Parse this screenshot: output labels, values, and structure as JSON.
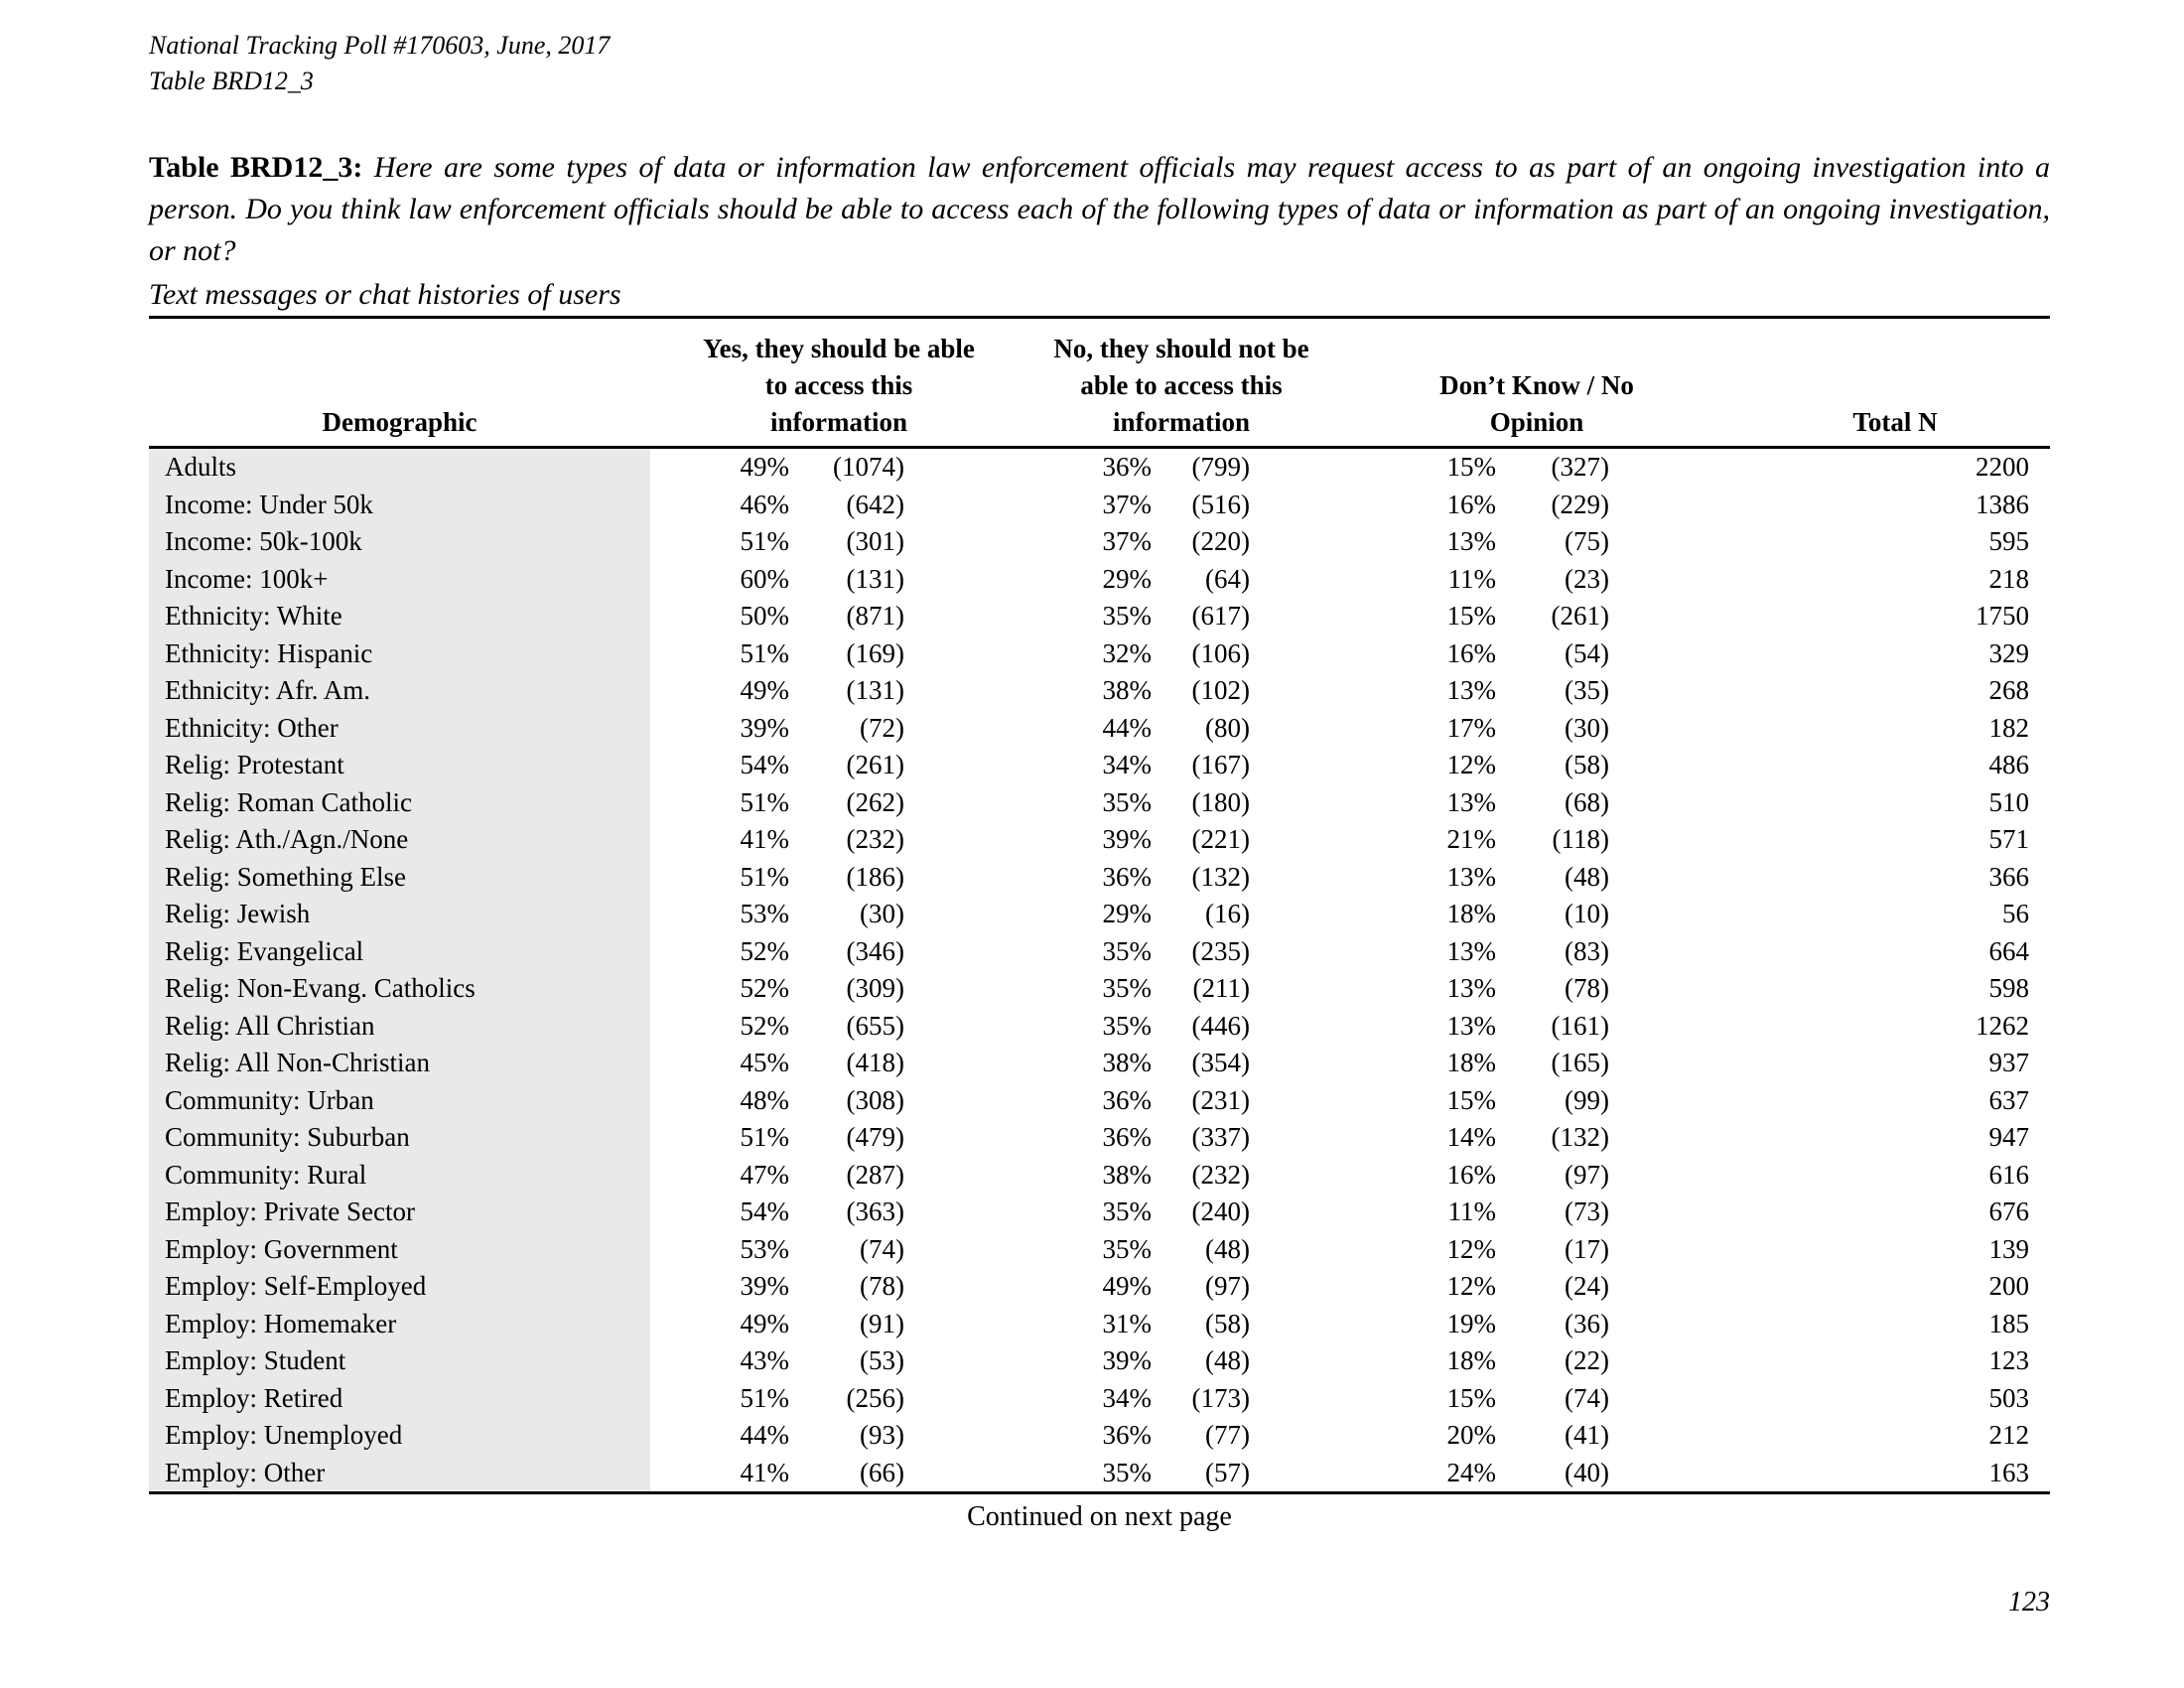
{
  "doc": {
    "header_line1": "National Tracking Poll #170603, June, 2017",
    "header_line2": "Table BRD12_3",
    "continued_note": "Continued on next page",
    "page_number": "123"
  },
  "caption": {
    "label": "Table BRD12_3:",
    "text": "Here are some types of data or information law enforcement officials may request access to as part of an ongoing investigation into a person.  Do you think law enforcement officials should be able to access each of the following types of data or information as part of an ongoing investigation, or not?",
    "subtitle": "Text messages or chat histories of users"
  },
  "table": {
    "columns": {
      "demographic": "Demographic",
      "yes_lines": [
        "Yes, they should be able",
        "to access this",
        "information"
      ],
      "no_lines": [
        "No, they should not be",
        "able to access this",
        "information"
      ],
      "dk_lines": [
        "Don’t Know / No",
        "Opinion"
      ],
      "total": "Total N"
    },
    "rows": [
      {
        "label": "Adults",
        "yes_pct": "49%",
        "yes_n": "(1074)",
        "no_pct": "36%",
        "no_n": "(799)",
        "dk_pct": "15%",
        "dk_n": "(327)",
        "total": "2200"
      },
      {
        "label": "Income: Under 50k",
        "yes_pct": "46%",
        "yes_n": "(642)",
        "no_pct": "37%",
        "no_n": "(516)",
        "dk_pct": "16%",
        "dk_n": "(229)",
        "total": "1386"
      },
      {
        "label": "Income: 50k-100k",
        "yes_pct": "51%",
        "yes_n": "(301)",
        "no_pct": "37%",
        "no_n": "(220)",
        "dk_pct": "13%",
        "dk_n": "(75)",
        "total": "595"
      },
      {
        "label": "Income: 100k+",
        "yes_pct": "60%",
        "yes_n": "(131)",
        "no_pct": "29%",
        "no_n": "(64)",
        "dk_pct": "11%",
        "dk_n": "(23)",
        "total": "218"
      },
      {
        "label": "Ethnicity: White",
        "yes_pct": "50%",
        "yes_n": "(871)",
        "no_pct": "35%",
        "no_n": "(617)",
        "dk_pct": "15%",
        "dk_n": "(261)",
        "total": "1750"
      },
      {
        "label": "Ethnicity: Hispanic",
        "yes_pct": "51%",
        "yes_n": "(169)",
        "no_pct": "32%",
        "no_n": "(106)",
        "dk_pct": "16%",
        "dk_n": "(54)",
        "total": "329"
      },
      {
        "label": "Ethnicity: Afr. Am.",
        "yes_pct": "49%",
        "yes_n": "(131)",
        "no_pct": "38%",
        "no_n": "(102)",
        "dk_pct": "13%",
        "dk_n": "(35)",
        "total": "268"
      },
      {
        "label": "Ethnicity: Other",
        "yes_pct": "39%",
        "yes_n": "(72)",
        "no_pct": "44%",
        "no_n": "(80)",
        "dk_pct": "17%",
        "dk_n": "(30)",
        "total": "182"
      },
      {
        "label": "Relig: Protestant",
        "yes_pct": "54%",
        "yes_n": "(261)",
        "no_pct": "34%",
        "no_n": "(167)",
        "dk_pct": "12%",
        "dk_n": "(58)",
        "total": "486"
      },
      {
        "label": "Relig: Roman Catholic",
        "yes_pct": "51%",
        "yes_n": "(262)",
        "no_pct": "35%",
        "no_n": "(180)",
        "dk_pct": "13%",
        "dk_n": "(68)",
        "total": "510"
      },
      {
        "label": "Relig: Ath./Agn./None",
        "yes_pct": "41%",
        "yes_n": "(232)",
        "no_pct": "39%",
        "no_n": "(221)",
        "dk_pct": "21%",
        "dk_n": "(118)",
        "total": "571"
      },
      {
        "label": "Relig: Something Else",
        "yes_pct": "51%",
        "yes_n": "(186)",
        "no_pct": "36%",
        "no_n": "(132)",
        "dk_pct": "13%",
        "dk_n": "(48)",
        "total": "366"
      },
      {
        "label": "Relig: Jewish",
        "yes_pct": "53%",
        "yes_n": "(30)",
        "no_pct": "29%",
        "no_n": "(16)",
        "dk_pct": "18%",
        "dk_n": "(10)",
        "total": "56"
      },
      {
        "label": "Relig: Evangelical",
        "yes_pct": "52%",
        "yes_n": "(346)",
        "no_pct": "35%",
        "no_n": "(235)",
        "dk_pct": "13%",
        "dk_n": "(83)",
        "total": "664"
      },
      {
        "label": "Relig: Non-Evang. Catholics",
        "yes_pct": "52%",
        "yes_n": "(309)",
        "no_pct": "35%",
        "no_n": "(211)",
        "dk_pct": "13%",
        "dk_n": "(78)",
        "total": "598"
      },
      {
        "label": "Relig: All Christian",
        "yes_pct": "52%",
        "yes_n": "(655)",
        "no_pct": "35%",
        "no_n": "(446)",
        "dk_pct": "13%",
        "dk_n": "(161)",
        "total": "1262"
      },
      {
        "label": "Relig: All Non-Christian",
        "yes_pct": "45%",
        "yes_n": "(418)",
        "no_pct": "38%",
        "no_n": "(354)",
        "dk_pct": "18%",
        "dk_n": "(165)",
        "total": "937"
      },
      {
        "label": "Community: Urban",
        "yes_pct": "48%",
        "yes_n": "(308)",
        "no_pct": "36%",
        "no_n": "(231)",
        "dk_pct": "15%",
        "dk_n": "(99)",
        "total": "637"
      },
      {
        "label": "Community: Suburban",
        "yes_pct": "51%",
        "yes_n": "(479)",
        "no_pct": "36%",
        "no_n": "(337)",
        "dk_pct": "14%",
        "dk_n": "(132)",
        "total": "947"
      },
      {
        "label": "Community: Rural",
        "yes_pct": "47%",
        "yes_n": "(287)",
        "no_pct": "38%",
        "no_n": "(232)",
        "dk_pct": "16%",
        "dk_n": "(97)",
        "total": "616"
      },
      {
        "label": "Employ: Private Sector",
        "yes_pct": "54%",
        "yes_n": "(363)",
        "no_pct": "35%",
        "no_n": "(240)",
        "dk_pct": "11%",
        "dk_n": "(73)",
        "total": "676"
      },
      {
        "label": "Employ: Government",
        "yes_pct": "53%",
        "yes_n": "(74)",
        "no_pct": "35%",
        "no_n": "(48)",
        "dk_pct": "12%",
        "dk_n": "(17)",
        "total": "139"
      },
      {
        "label": "Employ: Self-Employed",
        "yes_pct": "39%",
        "yes_n": "(78)",
        "no_pct": "49%",
        "no_n": "(97)",
        "dk_pct": "12%",
        "dk_n": "(24)",
        "total": "200"
      },
      {
        "label": "Employ: Homemaker",
        "yes_pct": "49%",
        "yes_n": "(91)",
        "no_pct": "31%",
        "no_n": "(58)",
        "dk_pct": "19%",
        "dk_n": "(36)",
        "total": "185"
      },
      {
        "label": "Employ: Student",
        "yes_pct": "43%",
        "yes_n": "(53)",
        "no_pct": "39%",
        "no_n": "(48)",
        "dk_pct": "18%",
        "dk_n": "(22)",
        "total": "123"
      },
      {
        "label": "Employ: Retired",
        "yes_pct": "51%",
        "yes_n": "(256)",
        "no_pct": "34%",
        "no_n": "(173)",
        "dk_pct": "15%",
        "dk_n": "(74)",
        "total": "503"
      },
      {
        "label": "Employ: Unemployed",
        "yes_pct": "44%",
        "yes_n": "(93)",
        "no_pct": "36%",
        "no_n": "(77)",
        "dk_pct": "20%",
        "dk_n": "(41)",
        "total": "212"
      },
      {
        "label": "Employ: Other",
        "yes_pct": "41%",
        "yes_n": "(66)",
        "no_pct": "35%",
        "no_n": "(57)",
        "dk_pct": "24%",
        "dk_n": "(40)",
        "total": "163"
      }
    ]
  }
}
